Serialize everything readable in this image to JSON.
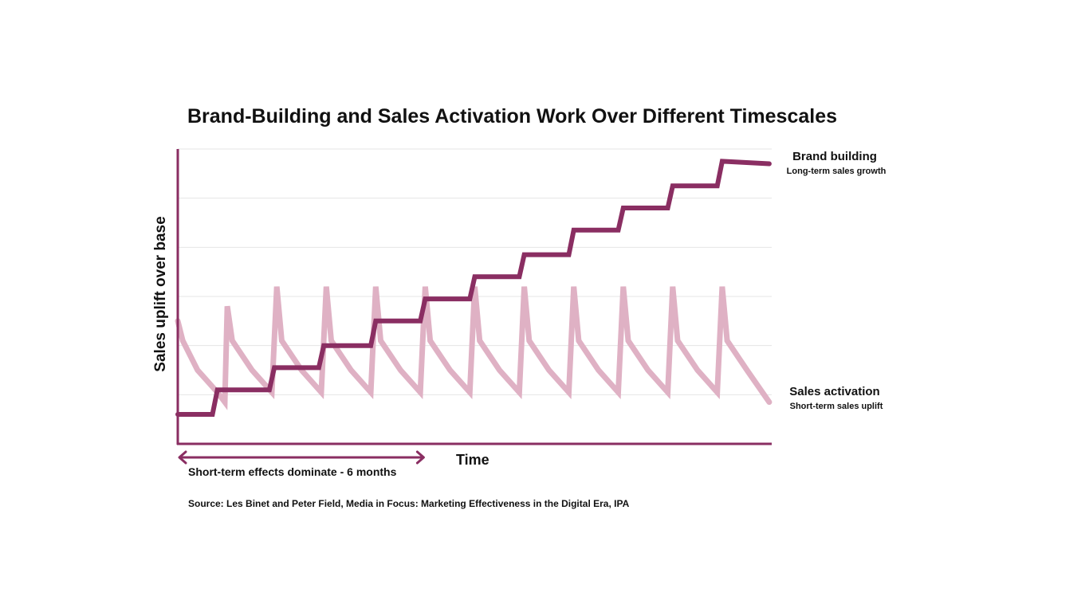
{
  "chart_data": {
    "type": "line",
    "title": "Brand-Building and Sales Activation Work Over Different Timescales",
    "xlabel": "Time",
    "ylabel": "Sales uplift over base",
    "ylim": [
      0,
      6
    ],
    "xlim": [
      0,
      12
    ],
    "grid": true,
    "series": [
      {
        "name": "Sales activation",
        "subtitle": "Short-term sales uplift",
        "color": "#dfb1c4",
        "x": [
          0,
          0.1,
          0.4,
          0.8,
          0.95,
          1.0,
          1.1,
          1.5,
          1.9,
          2.0,
          2.1,
          2.5,
          2.9,
          3.0,
          3.1,
          3.5,
          3.9,
          4.0,
          4.1,
          4.5,
          4.9,
          5.0,
          5.1,
          5.5,
          5.9,
          6.0,
          6.1,
          6.5,
          6.9,
          7.0,
          7.1,
          7.5,
          7.9,
          8.0,
          8.1,
          8.5,
          8.9,
          9.0,
          9.1,
          9.5,
          9.9,
          10.0,
          10.1,
          10.5,
          10.9,
          11.0,
          11.1,
          11.5,
          11.95
        ],
        "y": [
          2.5,
          2.1,
          1.5,
          1.05,
          0.85,
          2.8,
          2.1,
          1.5,
          1.05,
          3.2,
          2.1,
          1.5,
          1.05,
          3.2,
          2.1,
          1.5,
          1.05,
          3.2,
          2.1,
          1.5,
          1.05,
          3.2,
          2.1,
          1.5,
          1.05,
          3.2,
          2.1,
          1.5,
          1.05,
          3.2,
          2.1,
          1.5,
          1.05,
          3.2,
          2.1,
          1.5,
          1.05,
          3.2,
          2.1,
          1.5,
          1.05,
          3.2,
          2.1,
          1.5,
          1.05,
          3.2,
          2.1,
          1.5,
          0.85
        ]
      },
      {
        "name": "Brand building",
        "subtitle": "Long-term sales growth",
        "color": "#8a2e62",
        "x": [
          0,
          0.7,
          0.8,
          1.85,
          1.95,
          2.85,
          2.95,
          3.9,
          4.0,
          4.9,
          5.0,
          5.9,
          6.0,
          6.9,
          7.0,
          7.9,
          8.0,
          8.9,
          9.0,
          9.9,
          10.0,
          10.9,
          11.0,
          11.95
        ],
        "y": [
          0.6,
          0.6,
          1.1,
          1.1,
          1.55,
          1.55,
          2.0,
          2.0,
          2.5,
          2.5,
          2.95,
          2.95,
          3.4,
          3.4,
          3.85,
          3.85,
          4.35,
          4.35,
          4.8,
          4.8,
          5.25,
          5.25,
          5.75,
          5.7
        ]
      }
    ],
    "annotations": {
      "short_term_note": "Short-term effects dominate - 6 months",
      "short_term_span": [
        0,
        5
      ]
    }
  },
  "source": "Source: Les Binet and Peter Field, Media in Focus: Marketing Effectiveness in the Digital Era, IPA",
  "colors": {
    "axis": "#8a2e62",
    "grid": "#e4e4e4"
  }
}
